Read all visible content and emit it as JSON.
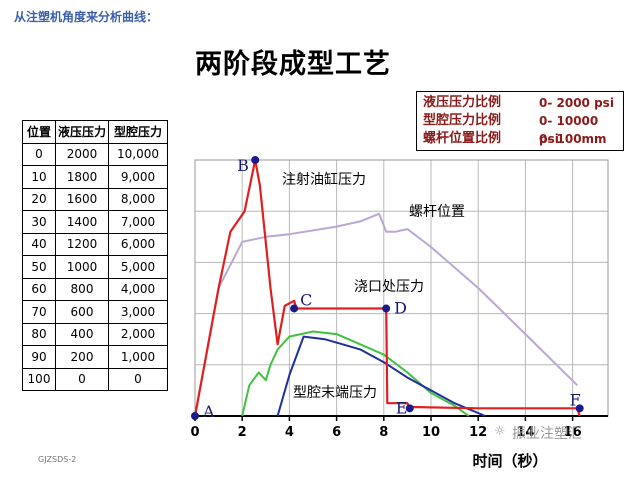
{
  "header": {
    "subtitle": "从注塑机角度来分析曲线：",
    "title": "两阶段成型工艺"
  },
  "legend": [
    {
      "name": "液压压力比例",
      "range": "0- 2000 psi"
    },
    {
      "name": "型腔压力比例",
      "range": "0- 10000 psi"
    },
    {
      "name": "螺杆位置比例",
      "range": "0- 100mm"
    }
  ],
  "scale_table": {
    "headers": [
      "位置",
      "液压压力",
      "型腔压力"
    ],
    "rows": [
      [
        "0",
        "2000",
        "10,000"
      ],
      [
        "10",
        "1800",
        "9,000"
      ],
      [
        "20",
        "1600",
        "8,000"
      ],
      [
        "30",
        "1400",
        "7,000"
      ],
      [
        "40",
        "1200",
        "6,000"
      ],
      [
        "50",
        "1000",
        "5,000"
      ],
      [
        "60",
        "800",
        "4,000"
      ],
      [
        "70",
        "600",
        "3,000"
      ],
      [
        "80",
        "400",
        "2,000"
      ],
      [
        "90",
        "200",
        "1,000"
      ],
      [
        "100",
        "0",
        "0"
      ]
    ]
  },
  "chart_data": {
    "type": "line",
    "xlabel": "时间（秒）",
    "x_ticks": [
      0,
      2,
      4,
      6,
      8,
      10,
      12,
      14,
      16
    ],
    "xlim": [
      0,
      17.5
    ],
    "ylim": [
      0,
      100
    ],
    "grid": true,
    "colors": {
      "injection_pressure": "#e02020",
      "screw_position": "#b9a8d6",
      "gate_pressure": "#3fc23f",
      "cavity_end_pressure": "#1f2f9e"
    },
    "series": [
      {
        "name": "注射油缸压力",
        "key": "injection_pressure",
        "points": [
          [
            0,
            0
          ],
          [
            0.5,
            25
          ],
          [
            1,
            50
          ],
          [
            1.5,
            72
          ],
          [
            2.1,
            80
          ],
          [
            2.55,
            100
          ],
          [
            2.75,
            90
          ],
          [
            3.2,
            50
          ],
          [
            3.5,
            28
          ],
          [
            3.8,
            43
          ],
          [
            4.2,
            45
          ],
          [
            4.3,
            42
          ],
          [
            5,
            42
          ],
          [
            7,
            42
          ],
          [
            8.1,
            42
          ],
          [
            8.15,
            5
          ],
          [
            9.0,
            5
          ],
          [
            9.1,
            3
          ],
          [
            9.2,
            3.5
          ],
          [
            12,
            3
          ],
          [
            16.2,
            3
          ],
          [
            16.3,
            0
          ]
        ]
      },
      {
        "name": "螺杆位置",
        "key": "screw_position",
        "points": [
          [
            0,
            0
          ],
          [
            1,
            50
          ],
          [
            2,
            68
          ],
          [
            3,
            70
          ],
          [
            4,
            71
          ],
          [
            6,
            74
          ],
          [
            7,
            76
          ],
          [
            7.8,
            79
          ],
          [
            8.1,
            72
          ],
          [
            8.5,
            72
          ],
          [
            9,
            73
          ],
          [
            10,
            66
          ],
          [
            12,
            50
          ],
          [
            14,
            32
          ],
          [
            16.2,
            12
          ]
        ]
      },
      {
        "name": "浇口处压力",
        "key": "gate_pressure",
        "points": [
          [
            2,
            0
          ],
          [
            2.3,
            12
          ],
          [
            2.7,
            17
          ],
          [
            3.0,
            14
          ],
          [
            3.2,
            20
          ],
          [
            3.5,
            26
          ],
          [
            4.0,
            31
          ],
          [
            5,
            33
          ],
          [
            6,
            32
          ],
          [
            7,
            28
          ],
          [
            8,
            24
          ],
          [
            9,
            17
          ],
          [
            10,
            9
          ],
          [
            11,
            4
          ],
          [
            11.6,
            0
          ]
        ]
      },
      {
        "name": "型腔末端压力",
        "key": "cavity_end_pressure",
        "points": [
          [
            3.5,
            0
          ],
          [
            4,
            16
          ],
          [
            4.6,
            31
          ],
          [
            5.5,
            30
          ],
          [
            7,
            26
          ],
          [
            8,
            21
          ],
          [
            9,
            15
          ],
          [
            10,
            10
          ],
          [
            11,
            5
          ],
          [
            12.3,
            0
          ]
        ]
      }
    ],
    "points_labels": [
      {
        "label": "A",
        "x": 0,
        "y": 0
      },
      {
        "label": "B",
        "x": 2.55,
        "y": 100
      },
      {
        "label": "C",
        "x": 4.2,
        "y": 42
      },
      {
        "label": "D",
        "x": 8.1,
        "y": 42
      },
      {
        "label": "E",
        "x": 9.1,
        "y": 3
      },
      {
        "label": "F",
        "x": 16.3,
        "y": 3
      }
    ]
  }
}
